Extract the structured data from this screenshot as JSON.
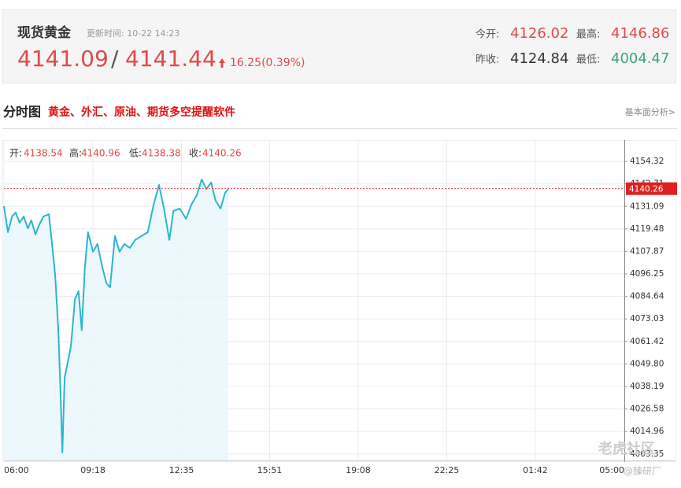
{
  "header": {
    "title": "现货黄金",
    "update_time": "更新时间: 10-22 14:23",
    "bid": "4141.09",
    "separator": "/",
    "ask": "4141.44",
    "change": "16.25(0.39%)",
    "stats": [
      {
        "label": "今开:",
        "value": "4126.02"
      },
      {
        "label": "最高:",
        "value": "4146.86"
      },
      {
        "label": "昨收:",
        "value": "4124.84"
      },
      {
        "label": "最低:",
        "value": "4004.47"
      }
    ]
  },
  "section": {
    "title": "分时图",
    "promo": "黄金、外汇、原油、期货多空提醒软件",
    "link": "基本面分析>"
  },
  "watermark": {
    "brand": "老虎社区",
    "author": "@臻研厂"
  },
  "chart_data": {
    "type": "line",
    "ohlc": [
      {
        "label": "开:",
        "value": 4138.54
      },
      {
        "label": "高:",
        "value": 4140.96
      },
      {
        "label": "低:",
        "value": 4138.38
      },
      {
        "label": "收:",
        "value": 4140.26
      }
    ],
    "last_price": 4140.26,
    "xlim": [
      0,
      1380
    ],
    "xticks": [
      {
        "value": 0,
        "label": "06:00"
      },
      {
        "value": 198,
        "label": "09:18"
      },
      {
        "value": 395,
        "label": "12:35"
      },
      {
        "value": 591,
        "label": "15:51"
      },
      {
        "value": 788,
        "label": "19:08"
      },
      {
        "value": 985,
        "label": "22:25"
      },
      {
        "value": 1182,
        "label": "01:42"
      },
      {
        "value": 1380,
        "label": "05:00"
      }
    ],
    "ylim": [
      4000,
      4164.5
    ],
    "yticks": [
      4154.32,
      4142.71,
      4131.09,
      4119.48,
      4107.87,
      4096.25,
      4084.64,
      4073.03,
      4061.42,
      {
        "value": 4049.8,
        "label": "4049.80"
      },
      4038.19,
      4026.58,
      4014.96,
      4003.35
    ],
    "grid": true,
    "series": [
      {
        "color": "#2bb5cf",
        "x": [
          0,
          9,
          18,
          26,
          35,
          44,
          53,
          61,
          70,
          79,
          88,
          100,
          107,
          114,
          121,
          126,
          130,
          135,
          142,
          149,
          158,
          166,
          173,
          180,
          187,
          198,
          208,
          219,
          228,
          236,
          247,
          257,
          268,
          280,
          292,
          306,
          320,
          333,
          345,
          356,
          368,
          377,
          391,
          405,
          417,
          429,
          440,
          450,
          461,
          471,
          482,
          492,
          499
        ],
        "values": [
          4131.2,
          4117.8,
          4125.9,
          4128.0,
          4122.7,
          4125.9,
          4119.8,
          4123.9,
          4116.6,
          4121.9,
          4125.9,
          4127.1,
          4111.7,
          4095.5,
          4067.1,
          4034.6,
          4004.1,
          4042.7,
          4050.8,
          4058.9,
          4083.3,
          4087.4,
          4067.1,
          4099.5,
          4117.8,
          4107.7,
          4111.7,
          4099.5,
          4091.4,
          4089.4,
          4115.8,
          4107.7,
          4111.7,
          4109.7,
          4113.8,
          4115.8,
          4117.8,
          4132.0,
          4142.2,
          4130.0,
          4113.8,
          4128.8,
          4130.0,
          4124.7,
          4132.0,
          4136.9,
          4145.0,
          4140.1,
          4143.4,
          4134.0,
          4130.0,
          4138.1,
          4140.1
        ]
      }
    ]
  }
}
